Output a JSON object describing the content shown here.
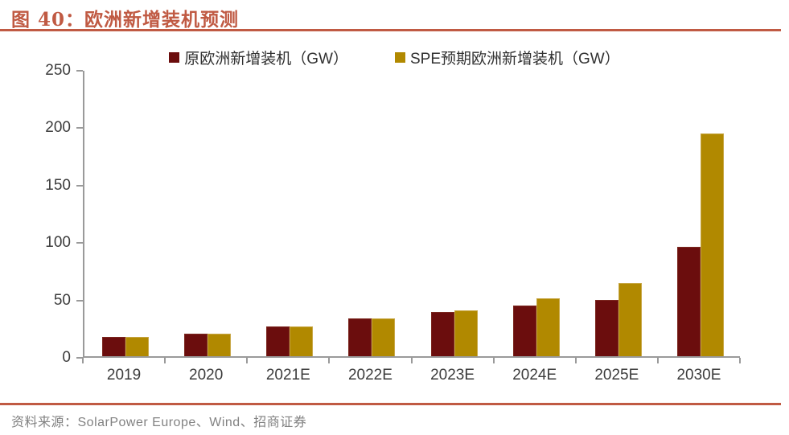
{
  "figure": {
    "title": "图 40：欧洲新增装机预测",
    "source": "资料来源：SolarPower Europe、Wind、招商证券"
  },
  "colors": {
    "accent_red": "#c05a43",
    "series_original": "#6b0d0d",
    "series_spe": "#b18900",
    "axis_gray": "#9a9a9a"
  },
  "chart_data": {
    "type": "bar",
    "title": "",
    "xlabel": "",
    "ylabel": "",
    "categories": [
      "2019",
      "2020",
      "2021E",
      "2022E",
      "2023E",
      "2024E",
      "2025E",
      "2030E"
    ],
    "series": [
      {
        "name": "原欧洲新增装机（GW）",
        "values": [
          16.7,
          19.6,
          26,
          33,
          38.5,
          44,
          49,
          95
        ]
      },
      {
        "name": "SPE预期欧洲新增装机（GW）",
        "values": [
          16.7,
          19.6,
          26,
          33,
          40,
          50.5,
          64,
          194
        ]
      }
    ],
    "ylim": [
      0,
      250
    ],
    "yticks": [
      0,
      50,
      100,
      150,
      200,
      250
    ],
    "legend_position": "top",
    "grid": false
  }
}
